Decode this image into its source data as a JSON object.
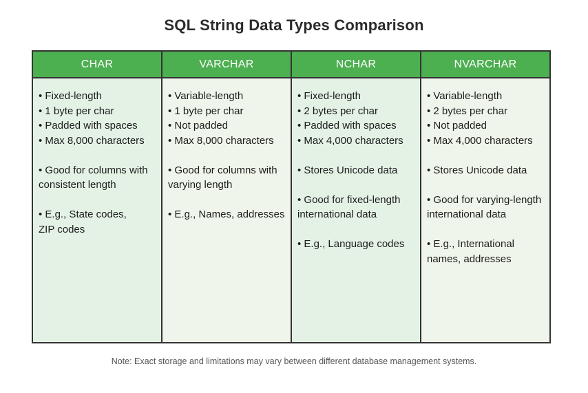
{
  "page": {
    "title": "SQL String Data Types Comparison",
    "note": "Note: Exact storage and limitations may vary between different database management systems."
  },
  "colors": {
    "header_bg": "#4caf50",
    "header_text": "#ffffff",
    "border": "#333333",
    "cell_bg_odd": "#e4f2e6",
    "cell_bg_even": "#eff5ea",
    "title_text": "#2b2b2b",
    "note_text": "#555555"
  },
  "table": {
    "bullet_char": "•",
    "columns": [
      {
        "header": "CHAR",
        "groups": [
          [
            "Fixed-length",
            "1 byte per char",
            "Padded with spaces",
            "Max 8,000 characters"
          ],
          [
            "Good for columns with\nconsistent length"
          ],
          [
            "E.g., State codes,\nZIP codes"
          ]
        ]
      },
      {
        "header": "VARCHAR",
        "groups": [
          [
            "Variable-length",
            "1 byte per char",
            "Not padded",
            "Max 8,000 characters"
          ],
          [
            "Good for columns with\nvarying length"
          ],
          [
            "E.g., Names, addresses"
          ]
        ]
      },
      {
        "header": "NCHAR",
        "groups": [
          [
            "Fixed-length",
            "2 bytes per char",
            "Padded with spaces",
            "Max 4,000 characters"
          ],
          [
            "Stores Unicode data"
          ],
          [
            "Good for fixed-length\ninternational data"
          ],
          [
            "E.g., Language codes"
          ]
        ]
      },
      {
        "header": "NVARCHAR",
        "groups": [
          [
            "Variable-length",
            "2 bytes per char",
            "Not padded",
            "Max 4,000 characters"
          ],
          [
            "Stores Unicode data"
          ],
          [
            "Good for varying-length\ninternational data"
          ],
          [
            "E.g., International\nnames, addresses"
          ]
        ]
      }
    ]
  }
}
